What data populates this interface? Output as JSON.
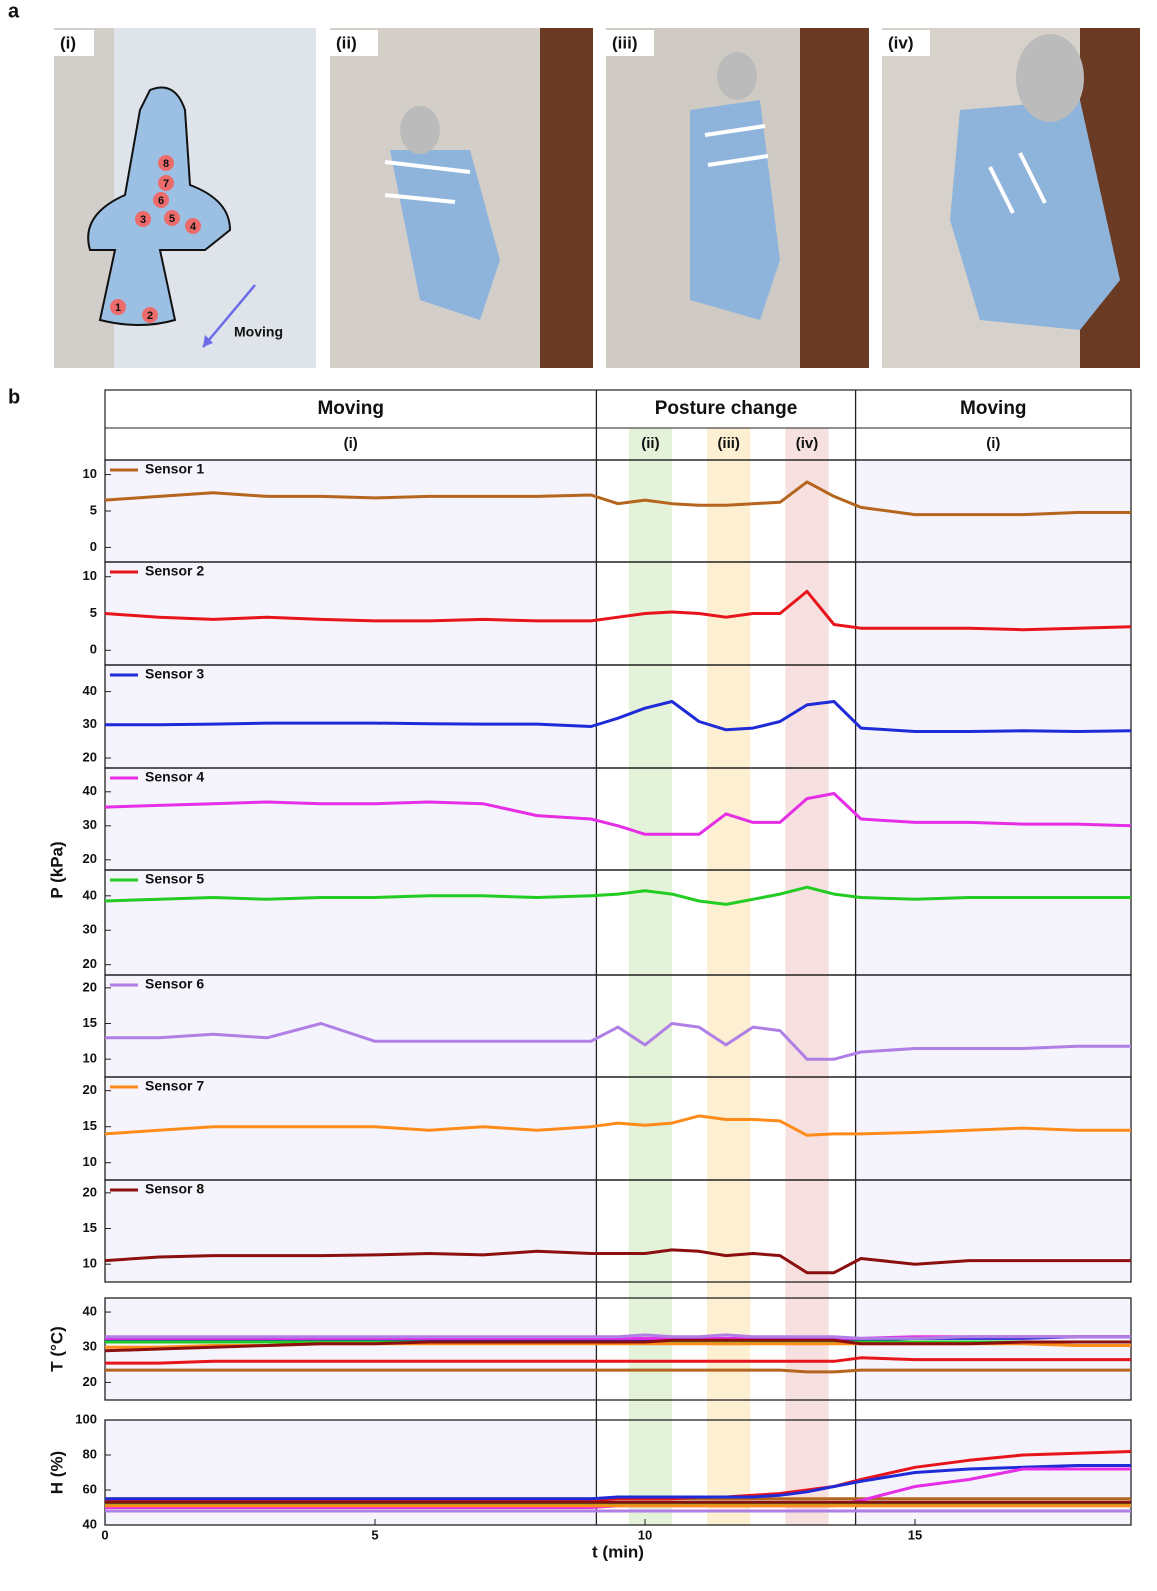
{
  "panel_labels": [
    "a",
    "b"
  ],
  "photos": [
    {
      "label": "(i)"
    },
    {
      "label": "(ii)"
    },
    {
      "label": "(iii)"
    },
    {
      "label": "(iv)"
    }
  ],
  "sensor_markers": [
    "1",
    "2",
    "3",
    "4",
    "5",
    "6",
    "7",
    "8"
  ],
  "photo_annotation": "Moving",
  "phases": [
    {
      "label": "Moving",
      "sub": "(i)",
      "start": 0,
      "end": 9.1
    },
    {
      "label": "Posture change",
      "start": 9.1,
      "end": 13.9
    },
    {
      "label": "Moving",
      "sub": "(i)",
      "start": 13.9,
      "end": 19
    }
  ],
  "bands": [
    {
      "label": "(ii)",
      "start": 9.7,
      "end": 10.5,
      "color": "#e4f2da"
    },
    {
      "label": "(iii)",
      "start": 11.15,
      "end": 11.95,
      "color": "#fcefd2"
    },
    {
      "label": "(iv)",
      "start": 12.6,
      "end": 13.4,
      "color": "#f6e0e0"
    }
  ],
  "pressure_label": "P (kPa)",
  "chart_data": [
    {
      "type": "line",
      "xlim": [
        0,
        19
      ],
      "ylim": [
        -2,
        12
      ],
      "yticks": [
        0,
        5,
        10
      ],
      "x": [
        0,
        1,
        2,
        3,
        4,
        5,
        6,
        7,
        8,
        9,
        9.5,
        10,
        10.5,
        11,
        11.5,
        12,
        12.5,
        13,
        13.5,
        14,
        15,
        16,
        17,
        18,
        19
      ],
      "series": [
        {
          "name": "Sensor 1",
          "color": "#b5651d",
          "values": [
            6.5,
            7,
            7.5,
            7,
            7,
            6.8,
            7,
            7,
            7,
            7.2,
            6,
            6.5,
            6,
            5.8,
            5.8,
            6,
            6.2,
            9,
            7,
            5.5,
            4.5,
            4.5,
            4.5,
            4.8,
            4.8
          ]
        }
      ]
    },
    {
      "type": "line",
      "xlim": [
        0,
        19
      ],
      "ylim": [
        -2,
        12
      ],
      "yticks": [
        0,
        5,
        10
      ],
      "x": [
        0,
        1,
        2,
        3,
        4,
        5,
        6,
        7,
        8,
        9,
        9.5,
        10,
        10.5,
        11,
        11.5,
        12,
        12.5,
        13,
        13.5,
        14,
        15,
        16,
        17,
        18,
        19
      ],
      "series": [
        {
          "name": "Sensor 2",
          "color": "#e8141b",
          "values": [
            5,
            4.5,
            4.2,
            4.5,
            4.2,
            4,
            4,
            4.2,
            4,
            4,
            4.5,
            5,
            5.2,
            5,
            4.5,
            5,
            5,
            8,
            3.5,
            3,
            3,
            3,
            2.8,
            3,
            3.2
          ]
        }
      ]
    },
    {
      "type": "line",
      "xlim": [
        0,
        19
      ],
      "ylim": [
        17,
        48
      ],
      "yticks": [
        20,
        30,
        40
      ],
      "x": [
        0,
        1,
        2,
        3,
        4,
        5,
        6,
        7,
        8,
        9,
        9.5,
        10,
        10.5,
        11,
        11.5,
        12,
        12.5,
        13,
        13.5,
        14,
        15,
        16,
        17,
        18,
        19
      ],
      "series": [
        {
          "name": "Sensor 3",
          "color": "#1f2bd6",
          "values": [
            30,
            30,
            30.2,
            30.5,
            30.5,
            30.5,
            30.3,
            30.2,
            30.2,
            29.5,
            32,
            35,
            37,
            31,
            28.5,
            29,
            31,
            36,
            37,
            29,
            28,
            28,
            28.2,
            28,
            28.2
          ]
        }
      ]
    },
    {
      "type": "line",
      "xlim": [
        0,
        19
      ],
      "ylim": [
        17,
        47
      ],
      "yticks": [
        20,
        30,
        40
      ],
      "x": [
        0,
        1,
        2,
        3,
        4,
        5,
        6,
        7,
        8,
        9,
        9.5,
        10,
        10.5,
        11,
        11.5,
        12,
        12.5,
        13,
        13.5,
        14,
        15,
        16,
        17,
        18,
        19
      ],
      "series": [
        {
          "name": "Sensor 4",
          "color": "#e62ee6",
          "values": [
            35.5,
            36,
            36.5,
            37,
            36.5,
            36.5,
            37,
            36.5,
            33,
            32,
            30,
            27.5,
            27.5,
            27.5,
            33.5,
            31,
            31,
            38,
            39.5,
            32,
            31,
            31,
            30.5,
            30.5,
            30
          ]
        }
      ]
    },
    {
      "type": "line",
      "xlim": [
        0,
        19
      ],
      "ylim": [
        17,
        47.5
      ],
      "yticks": [
        20,
        30,
        40
      ],
      "x": [
        0,
        1,
        2,
        3,
        4,
        5,
        6,
        7,
        8,
        9,
        9.5,
        10,
        10.5,
        11,
        11.5,
        12,
        12.5,
        13,
        13.5,
        14,
        15,
        16,
        17,
        18,
        19
      ],
      "series": [
        {
          "name": "Sensor 5",
          "color": "#22cc22",
          "values": [
            38.5,
            39,
            39.5,
            39,
            39.5,
            39.5,
            40,
            40,
            39.5,
            40,
            40.5,
            41.5,
            40.5,
            38.5,
            37.5,
            39,
            40.5,
            42.5,
            40.5,
            39.5,
            39,
            39.5,
            39.5,
            39.5,
            39.5
          ]
        }
      ]
    },
    {
      "type": "line",
      "xlim": [
        0,
        19
      ],
      "ylim": [
        7.5,
        21.8
      ],
      "yticks": [
        10,
        15,
        20
      ],
      "x": [
        0,
        1,
        2,
        3,
        4,
        5,
        6,
        7,
        8,
        9,
        9.5,
        10,
        10.5,
        11,
        11.5,
        12,
        12.5,
        13,
        13.5,
        14,
        15,
        16,
        17,
        18,
        19
      ],
      "series": [
        {
          "name": "Sensor 6",
          "color": "#b07fe6",
          "values": [
            13,
            13,
            13.5,
            13,
            15,
            12.5,
            12.5,
            12.5,
            12.5,
            12.5,
            14.5,
            12,
            15,
            14.5,
            12,
            14.5,
            14,
            10,
            10,
            11,
            11.5,
            11.5,
            11.5,
            11.8,
            11.8
          ]
        }
      ]
    },
    {
      "type": "line",
      "xlim": [
        0,
        19
      ],
      "ylim": [
        7.6,
        21.9
      ],
      "yticks": [
        10,
        15,
        20
      ],
      "x": [
        0,
        1,
        2,
        3,
        4,
        5,
        6,
        7,
        8,
        9,
        9.5,
        10,
        10.5,
        11,
        11.5,
        12,
        12.5,
        13,
        13.5,
        14,
        15,
        16,
        17,
        18,
        19
      ],
      "series": [
        {
          "name": "Sensor 7",
          "color": "#ff8c1a",
          "values": [
            14,
            14.5,
            15,
            15,
            15,
            15,
            14.5,
            15,
            14.5,
            15,
            15.5,
            15.2,
            15.5,
            16.5,
            16,
            16,
            15.8,
            13.8,
            14,
            14,
            14.2,
            14.5,
            14.8,
            14.5,
            14.5
          ]
        }
      ]
    },
    {
      "type": "line",
      "xlim": [
        0,
        19
      ],
      "ylim": [
        7.5,
        21.8
      ],
      "yticks": [
        10,
        15,
        20
      ],
      "x": [
        0,
        1,
        2,
        3,
        4,
        5,
        6,
        7,
        8,
        9,
        9.5,
        10,
        10.5,
        11,
        11.5,
        12,
        12.5,
        13,
        13.5,
        14,
        15,
        16,
        17,
        18,
        19
      ],
      "series": [
        {
          "name": "Sensor 8",
          "color": "#8b0f0f",
          "values": [
            10.5,
            11,
            11.2,
            11.2,
            11.2,
            11.3,
            11.5,
            11.3,
            11.8,
            11.5,
            11.5,
            11.5,
            12,
            11.8,
            11.2,
            11.5,
            11.2,
            8.8,
            8.8,
            10.8,
            10,
            10.5,
            10.5,
            10.5,
            10.5
          ]
        }
      ]
    },
    {
      "type": "line",
      "y_label": "T (°C)",
      "xlim": [
        0,
        19
      ],
      "ylim": [
        15,
        44
      ],
      "yticks": [
        20,
        30,
        40
      ],
      "x": [
        0,
        1,
        2,
        3,
        4,
        5,
        6,
        7,
        8,
        9,
        9.5,
        10,
        10.5,
        11,
        11.5,
        12,
        12.5,
        13,
        13.5,
        14,
        15,
        16,
        17,
        18,
        19
      ],
      "series": [
        {
          "color": "#b5651d",
          "values": [
            23.5,
            23.5,
            23.5,
            23.5,
            23.5,
            23.5,
            23.5,
            23.5,
            23.5,
            23.5,
            23.5,
            23.5,
            23.5,
            23.5,
            23.5,
            23.5,
            23.5,
            23,
            23,
            23.5,
            23.5,
            23.5,
            23.5,
            23.5,
            23.5
          ]
        },
        {
          "color": "#e8141b",
          "values": [
            25.5,
            25.5,
            26,
            26,
            26,
            26,
            26,
            26,
            26,
            26,
            26,
            26,
            26,
            26,
            26,
            26,
            26,
            26,
            26,
            27,
            26.5,
            26.5,
            26.5,
            26.5,
            26.5
          ]
        },
        {
          "color": "#1f2bd6",
          "values": [
            32,
            32,
            32,
            32,
            32,
            32,
            32,
            32,
            32,
            32,
            32,
            32,
            32,
            32,
            32,
            32,
            32,
            32,
            32,
            32,
            32.5,
            32.5,
            32.5,
            33,
            33
          ]
        },
        {
          "color": "#e62ee6",
          "values": [
            32.5,
            32.5,
            32.5,
            32.5,
            32.5,
            32.5,
            32.5,
            32.5,
            32.5,
            32.5,
            32.5,
            32.5,
            32.5,
            32.5,
            32.5,
            32.5,
            32.5,
            32.5,
            32.5,
            32.5,
            33,
            33,
            33,
            33,
            33
          ]
        },
        {
          "color": "#22cc22",
          "values": [
            31.5,
            31.5,
            31.5,
            31.5,
            31.5,
            31.5,
            31.5,
            31.5,
            31.5,
            31.5,
            31.5,
            31.5,
            31.5,
            31.5,
            31.5,
            31.5,
            31.5,
            31.5,
            31.5,
            31.5,
            31.5,
            31.5,
            31.5,
            31.5,
            31.5
          ]
        },
        {
          "color": "#b07fe6",
          "values": [
            33,
            33,
            33,
            33,
            33,
            33,
            33,
            33,
            33,
            33,
            33,
            33.5,
            33,
            33,
            33.5,
            33,
            33,
            33,
            33,
            32.5,
            32.5,
            33,
            33,
            33,
            33
          ]
        },
        {
          "color": "#ff8c1a",
          "values": [
            30,
            30,
            30.5,
            30.5,
            31,
            31,
            31,
            31,
            31,
            31,
            31,
            31,
            31,
            31,
            31,
            31,
            31,
            31,
            31,
            31,
            31,
            31,
            31,
            30.5,
            30.5
          ]
        },
        {
          "color": "#8b0f0f",
          "values": [
            29,
            29.5,
            30,
            30.5,
            31,
            31,
            31.5,
            31.5,
            31.5,
            31.5,
            31.5,
            31.5,
            32,
            32,
            32,
            32,
            32,
            32,
            32,
            31,
            31,
            31,
            31.5,
            31.5,
            31.5
          ]
        }
      ]
    },
    {
      "type": "line",
      "y_label": "H (%)",
      "x_label": "t (min)",
      "xlim": [
        0,
        19
      ],
      "ylim": [
        40,
        100
      ],
      "yticks": [
        40,
        60,
        80,
        100
      ],
      "xticks": [
        0,
        5,
        10,
        15
      ],
      "x": [
        0,
        1,
        2,
        3,
        4,
        5,
        6,
        7,
        8,
        9,
        9.5,
        10,
        10.5,
        11,
        11.5,
        12,
        12.5,
        13,
        13.5,
        14,
        15,
        16,
        17,
        18,
        19
      ],
      "series": [
        {
          "color": "#b5651d",
          "values": [
            55,
            55,
            55,
            55,
            55,
            55,
            55,
            55,
            55,
            55,
            55,
            55,
            55,
            55,
            55,
            55,
            55,
            55,
            55,
            55,
            55,
            55,
            55,
            55,
            55
          ]
        },
        {
          "color": "#e8141b",
          "values": [
            54,
            54,
            54,
            54,
            54,
            54,
            54,
            54,
            54,
            54,
            55,
            55,
            55,
            56,
            56,
            57,
            58,
            60,
            62,
            66,
            73,
            77,
            80,
            81,
            82
          ]
        },
        {
          "color": "#1f2bd6",
          "values": [
            55,
            55,
            55,
            55,
            55,
            55,
            55,
            55,
            55,
            55,
            56,
            56,
            56,
            56,
            56,
            56,
            57,
            59,
            62,
            65,
            70,
            72,
            73,
            74,
            74
          ]
        },
        {
          "color": "#e62ee6",
          "values": [
            50,
            50,
            50,
            50,
            50,
            50,
            50,
            50,
            50,
            50,
            51,
            51,
            51,
            51,
            51,
            51,
            51,
            51,
            51,
            54,
            62,
            66,
            72,
            72,
            72
          ]
        },
        {
          "color": "#22cc22",
          "values": [
            52,
            52,
            52,
            52,
            52,
            52,
            52,
            52,
            52,
            52,
            52,
            52,
            52,
            52,
            52,
            52,
            52,
            52,
            52,
            52,
            52,
            52,
            52,
            52,
            52
          ]
        },
        {
          "color": "#b07fe6",
          "values": [
            48,
            48,
            48,
            48,
            48,
            48,
            48,
            48,
            48,
            48,
            48,
            48,
            48,
            48,
            48,
            48,
            48,
            48,
            48,
            48,
            48,
            48,
            48,
            48,
            48
          ]
        },
        {
          "color": "#ff8c1a",
          "values": [
            51,
            51,
            51,
            51,
            51,
            51,
            51,
            51,
            51,
            51,
            51,
            51,
            51,
            51,
            51,
            51,
            51,
            51,
            51,
            51,
            51,
            51,
            51,
            51,
            51
          ]
        },
        {
          "color": "#8b0f0f",
          "values": [
            53,
            53,
            53,
            53,
            53,
            53,
            53,
            53,
            53,
            53,
            53,
            53,
            53,
            53,
            53,
            53,
            53,
            53,
            53,
            53,
            53,
            53,
            53,
            53,
            53
          ]
        }
      ]
    }
  ]
}
